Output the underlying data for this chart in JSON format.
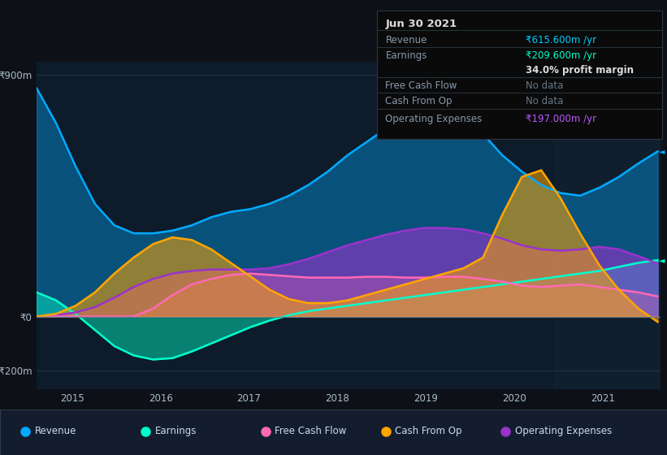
{
  "bg_color": "#0d1117",
  "plot_bg_color": "#0d1b2a",
  "ylim": [
    -270,
    950
  ],
  "xlim": [
    2014.6,
    2021.65
  ],
  "xticks": [
    2015,
    2016,
    2017,
    2018,
    2019,
    2020,
    2021
  ],
  "revenue_color": "#00aaff",
  "earnings_color": "#00ffcc",
  "fcf_color": "#ff69b4",
  "cashfromop_color": "#ffa500",
  "opex_color": "#9933cc",
  "shaded_start": 2020.45,
  "shaded_end": 2021.65,
  "revenue": [
    850,
    720,
    560,
    420,
    340,
    310,
    310,
    320,
    340,
    370,
    390,
    400,
    420,
    450,
    490,
    540,
    600,
    650,
    700,
    800,
    870,
    840,
    760,
    680,
    600,
    540,
    490,
    460,
    450,
    480,
    520,
    570,
    615
  ],
  "earnings": [
    90,
    60,
    10,
    -50,
    -110,
    -145,
    -160,
    -155,
    -130,
    -100,
    -70,
    -40,
    -15,
    5,
    20,
    30,
    40,
    50,
    60,
    70,
    80,
    90,
    100,
    110,
    120,
    130,
    140,
    150,
    160,
    170,
    185,
    200,
    210
  ],
  "fcf": [
    0,
    0,
    0,
    0,
    0,
    0,
    30,
    80,
    120,
    140,
    155,
    160,
    155,
    150,
    145,
    145,
    145,
    148,
    148,
    145,
    145,
    148,
    148,
    140,
    130,
    115,
    110,
    115,
    120,
    110,
    100,
    90,
    75
  ],
  "cashfromop": [
    0,
    10,
    40,
    90,
    160,
    220,
    270,
    295,
    285,
    250,
    200,
    150,
    100,
    65,
    50,
    50,
    60,
    80,
    100,
    120,
    140,
    160,
    180,
    220,
    380,
    520,
    545,
    440,
    310,
    190,
    100,
    30,
    -20
  ],
  "opex": [
    0,
    5,
    15,
    35,
    70,
    110,
    140,
    160,
    170,
    175,
    175,
    175,
    180,
    195,
    215,
    240,
    265,
    285,
    305,
    320,
    330,
    330,
    325,
    310,
    290,
    265,
    250,
    245,
    250,
    260,
    250,
    225,
    197
  ],
  "table_data": {
    "date": "Jun 30 2021",
    "revenue_val": "₹615.600m /yr",
    "earnings_val": "₹209.600m /yr",
    "margin": "34.0% profit margin",
    "fcf_val": "No data",
    "cashop_val": "No data",
    "opex_val": "₹197.000m /yr"
  },
  "legend_items": [
    {
      "label": "Revenue",
      "color": "#00aaff"
    },
    {
      "label": "Earnings",
      "color": "#00ffcc"
    },
    {
      "label": "Free Cash Flow",
      "color": "#ff69b4"
    },
    {
      "label": "Cash From Op",
      "color": "#ffa500"
    },
    {
      "label": "Operating Expenses",
      "color": "#9933cc"
    }
  ]
}
